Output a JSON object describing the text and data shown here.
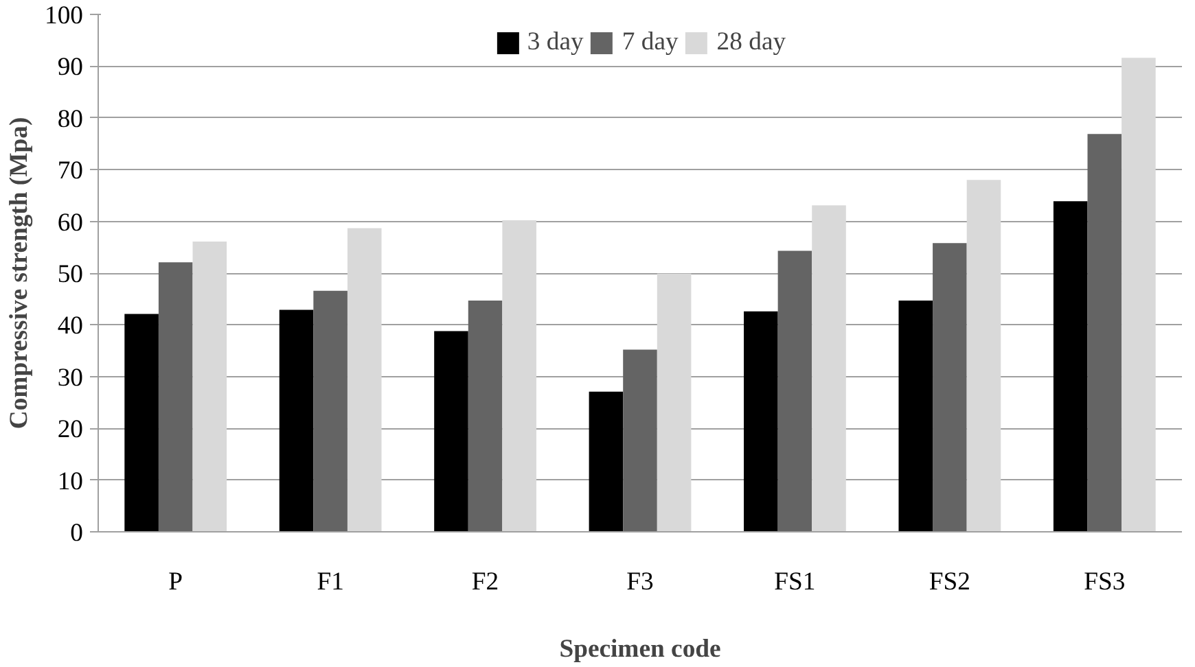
{
  "chart_data": {
    "type": "bar",
    "xlabel": "Specimen code",
    "ylabel": "Compressive strength (Mpa)",
    "categories": [
      "P",
      "F1",
      "F2",
      "F3",
      "FS1",
      "FS2",
      "FS3"
    ],
    "series": [
      {
        "name": "3 day",
        "color": "#000000",
        "values": [
          42.1,
          42.9,
          38.8,
          27.1,
          42.6,
          44.7,
          63.9
        ]
      },
      {
        "name": "7 day",
        "color": "#646464",
        "values": [
          52.1,
          46.6,
          44.7,
          35.2,
          54.3,
          55.8,
          76.9
        ]
      },
      {
        "name": "28 day",
        "color": "#d9d9d9",
        "values": [
          56.1,
          58.7,
          60.2,
          49.9,
          63.1,
          68.0,
          91.6
        ]
      }
    ],
    "ylim": [
      0,
      100
    ],
    "yticks": [
      0,
      10,
      20,
      30,
      40,
      50,
      60,
      70,
      80,
      90,
      100
    ],
    "grid": "y",
    "legend": "top"
  }
}
